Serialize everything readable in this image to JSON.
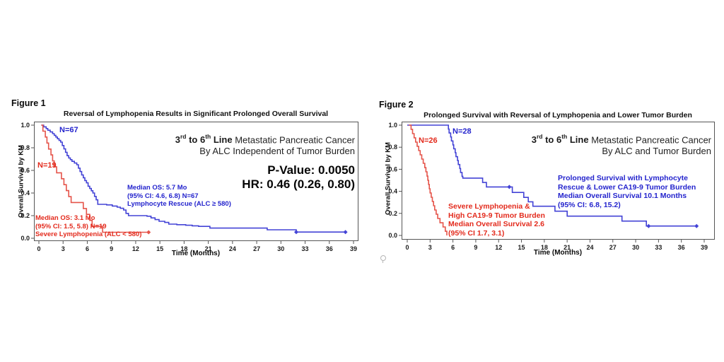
{
  "figures": [
    {
      "label": "Figure 1",
      "title": "Reversal of Lymphopenia Results in Significant Prolonged Overall Survival",
      "ylabel": "Overall Survival by KM",
      "xlabel": "Time (Months)",
      "headline": {
        "b1": "3",
        "sup1": "rd",
        "b2": " to 6",
        "sup2": "th",
        "b3": " Line",
        "rest": " Metastatic Pancreatic Cancer",
        "line2": "By ALC Independent of Tumor Burden"
      },
      "stats": {
        "p_value": "P-Value: 0.0050",
        "hr": "HR: 0.46 (0.26, 0.80)"
      },
      "annotations": {
        "blue_n": "N=67",
        "red_n": "N=19",
        "blue_lines": [
          "Median OS: 5.7 Mo",
          "(95% CI: 4.6, 6.8) N=67",
          "Lymphocyte Rescue (ALC ≥ 580)"
        ],
        "red_lines": [
          "Median OS: 3.1 Mo",
          "(95% CI: 1.5, 5.8) N=19",
          "Severe Lymphopenia (ALC < 580)"
        ]
      }
    },
    {
      "label": "Figure 2",
      "title": "Prolonged Survival with Reversal of Lymphopenia and Lower Tumor Burden",
      "ylabel": "Overall Survival by KM",
      "xlabel": "Time (Months)",
      "headline": {
        "b1": "3",
        "sup1": "rd",
        "b2": " to 6",
        "sup2": "th",
        "b3": " Line",
        "rest": " Metastatic Pancreatic Cancer",
        "line2": "By ALC and Tumor Burden"
      },
      "annotations": {
        "blue_n": "N=28",
        "red_n": "N=26",
        "blue_lines": [
          "Prolonged Survival with Lymphocyte",
          "Rescue & Lower CA19-9 Tumor Burden",
          "Median Overall Survival 10.1 Months",
          "(95% CI: 6.8, 15.2)"
        ],
        "red_lines": [
          "Severe Lymphopenia &",
          "High CA19-9 Tumor Burden",
          "Median Overall Survival 2.6",
          "(95% CI 1.7, 3.1)"
        ]
      }
    }
  ],
  "colors": {
    "blue_curve": "#4343d6",
    "red_curve": "#e5544a",
    "blue_text": "#2424cd",
    "red_text": "#e32a1c",
    "axis": "#555555"
  },
  "chart_data": [
    {
      "type": "line",
      "subtype": "kaplan-meier-step",
      "title": "Reversal of Lymphopenia Results in Significant Prolonged Overall Survival",
      "xlabel": "Time (Months)",
      "ylabel": "Overall Survival by KM",
      "xlim": [
        0,
        39
      ],
      "ylim": [
        0,
        1
      ],
      "x_ticks": [
        0,
        3,
        6,
        9,
        12,
        15,
        18,
        21,
        24,
        27,
        30,
        33,
        36,
        39
      ],
      "y_ticks": [
        0.0,
        0.2,
        0.4,
        0.6,
        0.8,
        1.0
      ],
      "grid": false,
      "legend_position": "inline-annotations",
      "series": [
        {
          "key": "lymphocyte-rescue",
          "name": "Lymphocyte Rescue (ALC ≥ 580)",
          "n": 67,
          "median_os_months": 5.7,
          "ci95": [
            4.6,
            6.8
          ],
          "color": "#4343d6",
          "points": [
            [
              0.3,
              1.0
            ],
            [
              0.6,
              0.985
            ],
            [
              0.9,
              0.97
            ],
            [
              1.1,
              0.955
            ],
            [
              1.4,
              0.94
            ],
            [
              1.7,
              0.925
            ],
            [
              1.9,
              0.91
            ],
            [
              2.1,
              0.895
            ],
            [
              2.3,
              0.88
            ],
            [
              2.5,
              0.865
            ],
            [
              2.7,
              0.85
            ],
            [
              2.9,
              0.82
            ],
            [
              3.1,
              0.79
            ],
            [
              3.3,
              0.76
            ],
            [
              3.5,
              0.73
            ],
            [
              3.7,
              0.71
            ],
            [
              3.9,
              0.695
            ],
            [
              4.1,
              0.68
            ],
            [
              4.4,
              0.665
            ],
            [
              4.7,
              0.65
            ],
            [
              4.9,
              0.62
            ],
            [
              5.1,
              0.59
            ],
            [
              5.3,
              0.56
            ],
            [
              5.5,
              0.535
            ],
            [
              5.7,
              0.51
            ],
            [
              5.9,
              0.49
            ],
            [
              6.1,
              0.46
            ],
            [
              6.3,
              0.44
            ],
            [
              6.5,
              0.42
            ],
            [
              6.7,
              0.4
            ],
            [
              6.9,
              0.37
            ],
            [
              7.1,
              0.34
            ],
            [
              7.3,
              0.3
            ],
            [
              8.4,
              0.295
            ],
            [
              9.1,
              0.285
            ],
            [
              9.7,
              0.275
            ],
            [
              10.1,
              0.265
            ],
            [
              10.5,
              0.25
            ],
            [
              10.8,
              0.22
            ],
            [
              11.1,
              0.2
            ],
            [
              13.4,
              0.195
            ],
            [
              13.9,
              0.18
            ],
            [
              14.4,
              0.165
            ],
            [
              14.9,
              0.15
            ],
            [
              15.6,
              0.14
            ],
            [
              16.1,
              0.125
            ],
            [
              17.1,
              0.12
            ],
            [
              18.2,
              0.115
            ],
            [
              19.0,
              0.11
            ],
            [
              19.8,
              0.105
            ],
            [
              21.2,
              0.09
            ],
            [
              28.3,
              0.075
            ],
            [
              31.9,
              0.055
            ],
            [
              38.0,
              0.055
            ]
          ],
          "censors": [
            [
              31.9,
              0.055
            ],
            [
              38.0,
              0.055
            ]
          ]
        },
        {
          "key": "severe-lymphopenia",
          "name": "Severe Lymphopenia (ALC < 580)",
          "n": 19,
          "median_os_months": 3.1,
          "ci95": [
            1.5,
            5.8
          ],
          "color": "#e5544a",
          "points": [
            [
              0.3,
              1.0
            ],
            [
              0.5,
              0.947
            ],
            [
              0.8,
              0.895
            ],
            [
              1.0,
              0.842
            ],
            [
              1.2,
              0.789
            ],
            [
              1.5,
              0.737
            ],
            [
              1.7,
              0.684
            ],
            [
              1.9,
              0.632
            ],
            [
              2.2,
              0.579
            ],
            [
              2.8,
              0.526
            ],
            [
              3.1,
              0.474
            ],
            [
              3.4,
              0.421
            ],
            [
              3.7,
              0.368
            ],
            [
              4.0,
              0.316
            ],
            [
              5.5,
              0.263
            ],
            [
              5.9,
              0.211
            ],
            [
              6.3,
              0.158
            ],
            [
              6.6,
              0.105
            ],
            [
              7.9,
              0.053
            ],
            [
              13.6,
              0.053
            ]
          ],
          "censors": [
            [
              13.6,
              0.053
            ]
          ]
        }
      ],
      "p_value": 0.005,
      "hazard_ratio": {
        "hr": 0.46,
        "ci95": [
          0.26,
          0.8
        ]
      }
    },
    {
      "type": "line",
      "subtype": "kaplan-meier-step",
      "title": "Prolonged Survival with Reversal of Lymphopenia and Lower Tumor Burden",
      "xlabel": "Time (Months)",
      "ylabel": "Overall Survival by KM",
      "xlim": [
        0,
        39
      ],
      "ylim": [
        0,
        1
      ],
      "x_ticks": [
        0,
        3,
        6,
        9,
        12,
        15,
        18,
        21,
        24,
        27,
        30,
        33,
        36,
        39
      ],
      "y_ticks": [
        0.0,
        0.2,
        0.4,
        0.6,
        0.8,
        1.0
      ],
      "grid": false,
      "legend_position": "inline-annotations",
      "series": [
        {
          "key": "rescue-lower-ca19-9",
          "name": "Lymphocyte Rescue & Lower CA19-9 Tumor Burden",
          "n": 28,
          "median_os_months": 10.1,
          "ci95": [
            6.8,
            15.2
          ],
          "color": "#4343d6",
          "points": [
            [
              0.0,
              1.0
            ],
            [
              5.2,
              1.0
            ],
            [
              5.4,
              0.964
            ],
            [
              5.5,
              0.929
            ],
            [
              5.7,
              0.893
            ],
            [
              5.8,
              0.857
            ],
            [
              6.0,
              0.821
            ],
            [
              6.1,
              0.786
            ],
            [
              6.3,
              0.75
            ],
            [
              6.4,
              0.714
            ],
            [
              6.6,
              0.679
            ],
            [
              6.7,
              0.643
            ],
            [
              6.9,
              0.607
            ],
            [
              7.0,
              0.571
            ],
            [
              7.2,
              0.536
            ],
            [
              7.3,
              0.52
            ],
            [
              9.9,
              0.48
            ],
            [
              10.4,
              0.44
            ],
            [
              13.8,
              0.39
            ],
            [
              15.3,
              0.345
            ],
            [
              15.9,
              0.305
            ],
            [
              16.5,
              0.265
            ],
            [
              19.4,
              0.22
            ],
            [
              21.0,
              0.175
            ],
            [
              28.2,
              0.13
            ],
            [
              31.4,
              0.085
            ],
            [
              38.0,
              0.085
            ]
          ],
          "censors": [
            [
              13.4,
              0.44
            ],
            [
              31.7,
              0.085
            ],
            [
              38.0,
              0.085
            ]
          ]
        },
        {
          "key": "severe-lymphopenia-high-ca19-9",
          "name": "Severe Lymphopenia & High CA19-9 Tumor Burden",
          "n": 26,
          "median_os_months": 2.6,
          "ci95": [
            1.7,
            3.1
          ],
          "color": "#e5544a",
          "points": [
            [
              0.2,
              1.0
            ],
            [
              0.5,
              0.962
            ],
            [
              0.7,
              0.923
            ],
            [
              0.9,
              0.885
            ],
            [
              1.1,
              0.846
            ],
            [
              1.3,
              0.808
            ],
            [
              1.5,
              0.769
            ],
            [
              1.7,
              0.731
            ],
            [
              1.9,
              0.692
            ],
            [
              2.1,
              0.654
            ],
            [
              2.3,
              0.615
            ],
            [
              2.45,
              0.577
            ],
            [
              2.6,
              0.538
            ],
            [
              2.7,
              0.5
            ],
            [
              2.8,
              0.462
            ],
            [
              2.9,
              0.423
            ],
            [
              3.0,
              0.385
            ],
            [
              3.15,
              0.346
            ],
            [
              3.3,
              0.308
            ],
            [
              3.45,
              0.269
            ],
            [
              3.6,
              0.231
            ],
            [
              3.8,
              0.192
            ],
            [
              4.0,
              0.154
            ],
            [
              4.3,
              0.115
            ],
            [
              4.7,
              0.077
            ],
            [
              5.0,
              0.038
            ],
            [
              5.2,
              0.0
            ]
          ],
          "censors": []
        }
      ]
    }
  ]
}
